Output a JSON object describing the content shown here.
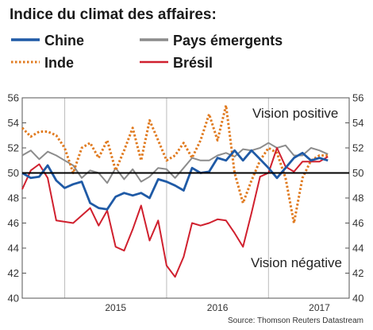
{
  "chart_data": {
    "type": "line",
    "title": "Indice du climat des affaires:",
    "yticks": [
      40,
      42,
      44,
      46,
      48,
      50,
      52,
      54,
      56
    ],
    "ylim": [
      40,
      56
    ],
    "xlim": [
      2014.583,
      2017.792
    ],
    "reference_line": 50,
    "grid": "vertical",
    "x_labels": [
      {
        "label": "2015",
        "x": 2015.0
      },
      {
        "label": "2016",
        "x": 2016.0
      },
      {
        "label": "2017",
        "x": 2017.0
      }
    ],
    "annotations": [
      {
        "text": "Vision positive",
        "near": "top-right"
      },
      {
        "text": "Vision négative",
        "near": "bottom-right"
      }
    ],
    "source": "Source: Thomson Reuters Datastream",
    "series": [
      {
        "name": "Chine",
        "color": "#1f5aa6",
        "dash": "solid",
        "x": [
          2014.583,
          2014.667,
          2014.75,
          2014.833,
          2014.917,
          2015.0,
          2015.083,
          2015.167,
          2015.25,
          2015.333,
          2015.417,
          2015.5,
          2015.583,
          2015.667,
          2015.75,
          2015.833,
          2015.917,
          2016.0,
          2016.083,
          2016.167,
          2016.25,
          2016.333,
          2016.417,
          2016.5,
          2016.583,
          2016.667,
          2016.75,
          2016.833,
          2016.917,
          2017.0,
          2017.083,
          2017.167,
          2017.25,
          2017.333,
          2017.417,
          2017.5,
          2017.583
        ],
        "values": [
          50.0,
          49.6,
          49.7,
          50.6,
          49.4,
          48.8,
          49.1,
          49.3,
          47.6,
          47.2,
          47.1,
          48.1,
          48.4,
          48.2,
          48.4,
          48.0,
          49.5,
          49.3,
          49.0,
          48.6,
          50.4,
          50.0,
          50.1,
          51.2,
          51.0,
          51.8,
          51.0,
          51.8,
          51.1,
          50.4,
          49.6,
          50.4,
          51.2,
          51.6,
          51.0,
          51.2,
          51.0
        ]
      },
      {
        "name": "Pays émergents",
        "color": "#8c8c8c",
        "dash": "solid",
        "x": [
          2014.583,
          2014.667,
          2014.75,
          2014.833,
          2014.917,
          2015.0,
          2015.083,
          2015.167,
          2015.25,
          2015.333,
          2015.417,
          2015.5,
          2015.583,
          2015.667,
          2015.75,
          2015.833,
          2015.917,
          2016.0,
          2016.083,
          2016.167,
          2016.25,
          2016.333,
          2016.417,
          2016.5,
          2016.583,
          2016.667,
          2016.75,
          2016.833,
          2016.917,
          2017.0,
          2017.083,
          2017.167,
          2017.25,
          2017.333,
          2017.417,
          2017.5,
          2017.583
        ],
        "values": [
          51.4,
          51.8,
          51.1,
          51.7,
          51.4,
          51.0,
          50.6,
          49.6,
          50.2,
          50.0,
          49.2,
          50.4,
          49.5,
          50.3,
          49.3,
          49.7,
          50.4,
          50.3,
          49.6,
          50.4,
          51.2,
          51.0,
          51.0,
          51.4,
          51.6,
          51.3,
          51.9,
          51.8,
          52.0,
          52.4,
          52.0,
          52.2,
          51.4,
          51.4,
          52.0,
          51.8,
          51.5
        ]
      },
      {
        "name": "Inde",
        "color": "#e07a1f",
        "dash": "dotted",
        "x": [
          2014.583,
          2014.667,
          2014.75,
          2014.833,
          2014.917,
          2015.0,
          2015.083,
          2015.167,
          2015.25,
          2015.333,
          2015.417,
          2015.5,
          2015.583,
          2015.667,
          2015.75,
          2015.833,
          2015.917,
          2016.0,
          2016.083,
          2016.167,
          2016.25,
          2016.333,
          2016.417,
          2016.5,
          2016.583,
          2016.667,
          2016.75,
          2016.833,
          2016.917,
          2017.0,
          2017.083,
          2017.167,
          2017.25,
          2017.333,
          2017.417,
          2017.5,
          2017.583
        ],
        "values": [
          53.6,
          52.9,
          53.3,
          53.3,
          53.0,
          52.0,
          50.0,
          52.0,
          52.4,
          51.2,
          52.6,
          50.2,
          51.8,
          53.6,
          51.0,
          54.2,
          52.6,
          51.0,
          51.4,
          52.4,
          51.2,
          52.6,
          54.7,
          52.6,
          55.4,
          50.0,
          47.6,
          49.4,
          51.0,
          52.0,
          51.6,
          49.6,
          46.0,
          49.6,
          51.0,
          51.4,
          51.4
        ]
      },
      {
        "name": "Brésil",
        "color": "#d0202e",
        "dash": "solid",
        "x": [
          2014.583,
          2014.667,
          2014.75,
          2014.833,
          2014.917,
          2015.0,
          2015.083,
          2015.167,
          2015.25,
          2015.333,
          2015.417,
          2015.5,
          2015.583,
          2015.667,
          2015.75,
          2015.833,
          2015.917,
          2016.0,
          2016.083,
          2016.167,
          2016.25,
          2016.333,
          2016.417,
          2016.5,
          2016.583,
          2016.667,
          2016.75,
          2016.833,
          2016.917,
          2017.0,
          2017.083,
          2017.167,
          2017.25,
          2017.333,
          2017.417,
          2017.5,
          2017.583
        ],
        "values": [
          48.7,
          50.2,
          50.7,
          49.6,
          46.2,
          46.1,
          46.0,
          46.6,
          47.2,
          45.8,
          47.0,
          44.1,
          43.8,
          45.5,
          47.4,
          44.6,
          46.2,
          42.6,
          41.7,
          43.3,
          46.0,
          45.8,
          46.0,
          46.3,
          46.2,
          45.2,
          44.1,
          46.8,
          49.7,
          50.0,
          52.0,
          50.5,
          50.1,
          50.9,
          50.9,
          50.9,
          51.3
        ]
      }
    ]
  }
}
